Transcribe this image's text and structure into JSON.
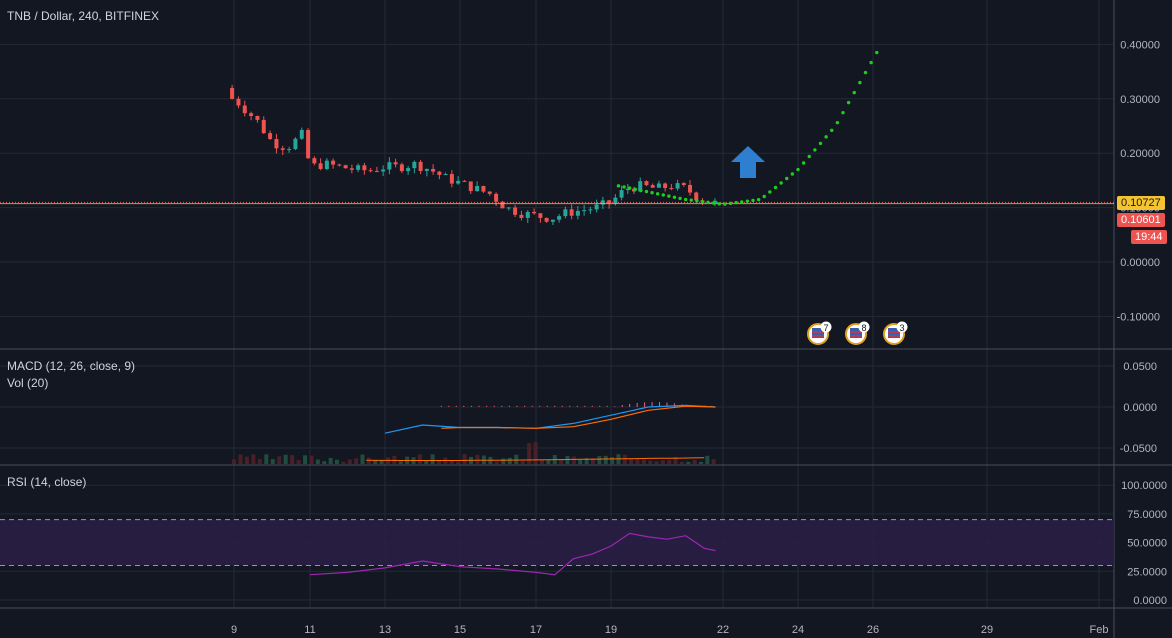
{
  "header": {
    "title": "TNB / Dollar, 240, BITFINEX"
  },
  "price_tags": {
    "current": "0.10727",
    "last": "0.10601",
    "countdown": "19:44"
  },
  "events": [
    "7",
    "8",
    "3"
  ],
  "panes": {
    "macd_label": "MACD (12, 26, close, 9)",
    "vol_label": "Vol (20)",
    "rsi_label": "RSI (14, close)"
  },
  "colors": {
    "background": "#131722",
    "up": "#26a69a",
    "down": "#ef5350",
    "projection": "#1ccf1c",
    "arrow": "#2f7fd0",
    "macd": "#2196f3",
    "signal": "#ff6d00",
    "rsi": "#9c27b0"
  },
  "chart_data": [
    {
      "type": "candlestick",
      "title": "TNB / Dollar, 240, BITFINEX",
      "x_ticks": [
        "9",
        "11",
        "13",
        "15",
        "17",
        "19",
        "22",
        "24",
        "26",
        "29",
        "Feb"
      ],
      "y_ticks": [
        "0.40000",
        "0.30000",
        "0.20000",
        "0.10000",
        "0.00000",
        "-0.10000"
      ],
      "ylim": [
        -0.1,
        0.4
      ],
      "current_price": 0.10727,
      "last_price": 0.10601,
      "close_series": {
        "x_day": [
          9.0,
          9.3,
          9.6,
          10.0,
          10.4,
          10.8,
          11.0,
          11.4,
          11.8,
          12.2,
          12.6,
          13.0,
          13.4,
          13.8,
          14.2,
          14.6,
          15.0,
          15.4,
          15.8,
          16.2,
          16.6,
          17.0,
          17.4,
          17.8,
          18.2,
          18.6,
          19.0,
          19.4,
          19.8,
          20.2,
          20.6,
          21.0,
          21.4,
          21.8
        ],
        "close": [
          0.3,
          0.28,
          0.26,
          0.22,
          0.21,
          0.235,
          0.175,
          0.18,
          0.175,
          0.17,
          0.168,
          0.175,
          0.175,
          0.18,
          0.17,
          0.155,
          0.145,
          0.135,
          0.125,
          0.1,
          0.09,
          0.085,
          0.08,
          0.09,
          0.095,
          0.1,
          0.11,
          0.135,
          0.14,
          0.135,
          0.14,
          0.135,
          0.115,
          0.108
        ]
      },
      "projection": {
        "x_day": [
          21.0,
          22.0,
          23.0,
          24.0,
          25.0,
          26.1
        ],
        "y": [
          0.115,
          0.106,
          0.115,
          0.17,
          0.25,
          0.385
        ]
      }
    },
    {
      "type": "line",
      "title": "MACD (12, 26, close, 9)",
      "y_ticks": [
        "0.0500",
        "0.0000",
        "-0.0500"
      ],
      "ylim": [
        -0.06,
        0.06
      ],
      "series": [
        {
          "x_day": [
            13.0,
            14.0,
            15.0,
            16.0,
            17.0,
            18.0,
            19.0,
            20.0,
            21.0,
            21.8
          ],
          "values": [
            -0.032,
            -0.022,
            -0.025,
            -0.025,
            -0.026,
            -0.02,
            -0.01,
            0.0,
            0.002,
            0.0
          ]
        },
        {
          "x_day": [
            14.5,
            15.0,
            16.0,
            17.0,
            18.0,
            19.0,
            20.0,
            21.0,
            21.8
          ],
          "values": [
            -0.026,
            -0.025,
            -0.025,
            -0.026,
            -0.024,
            -0.015,
            -0.004,
            0.001,
            0.0
          ]
        }
      ]
    },
    {
      "type": "line",
      "title": "RSI (14, close)",
      "y_ticks": [
        "100.0000",
        "75.0000",
        "50.0000",
        "25.0000",
        "0.0000"
      ],
      "ylim": [
        -10,
        110
      ],
      "bands": [
        30,
        70
      ],
      "series": [
        {
          "x_day": [
            11.0,
            12.0,
            13.0,
            14.0,
            15.0,
            16.0,
            17.0,
            17.5,
            18.0,
            18.5,
            19.0,
            19.5,
            20.0,
            20.5,
            21.0,
            21.5,
            21.8
          ],
          "values": [
            22,
            24,
            28,
            34,
            29,
            27,
            24,
            22,
            36,
            40,
            47,
            58,
            55,
            53,
            56,
            45,
            43
          ]
        }
      ]
    }
  ],
  "x_axis": {
    "ticks": [
      "9",
      "11",
      "13",
      "15",
      "17",
      "19",
      "22",
      "24",
      "26",
      "29",
      "Feb"
    ]
  }
}
